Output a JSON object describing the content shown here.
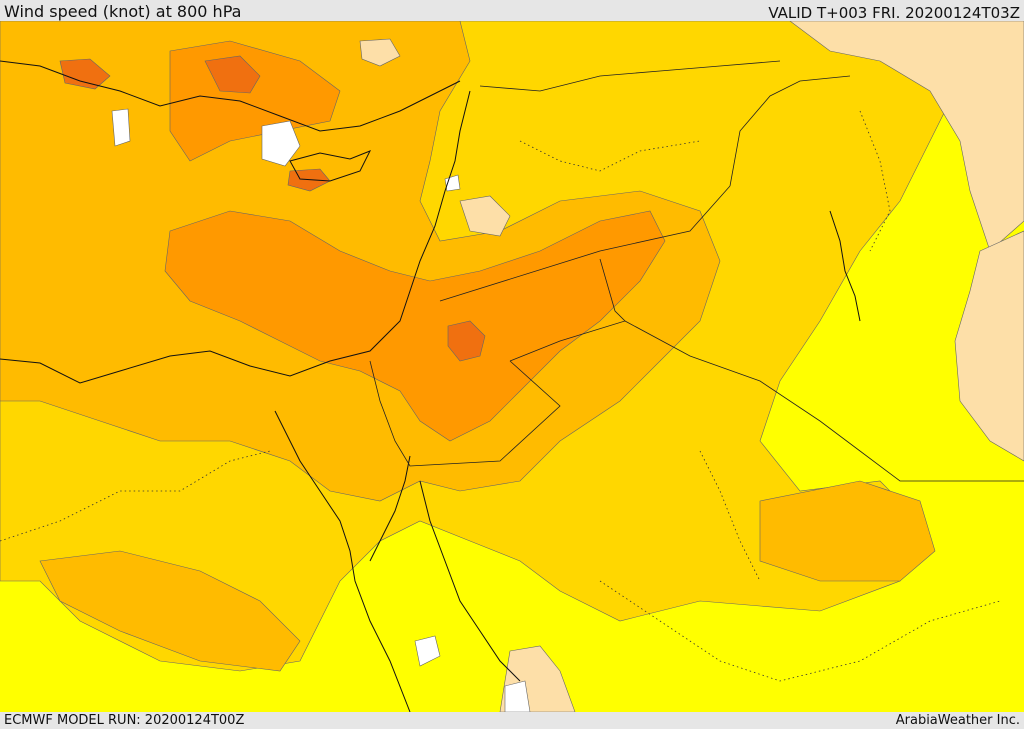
{
  "header": {
    "title": "Wind speed (knot) at 800 hPa",
    "valid": "VALID T+003 FRI. 20200124T03Z"
  },
  "footer": {
    "model_run": "ECMWF MODEL RUN: 20200124T00Z",
    "credit": "ArabiaWeather Inc."
  },
  "colors": {
    "very_low": "#ffffff",
    "low": "#fddfa8",
    "yellow": "#ffff00",
    "yellow_orange": "#ffd700",
    "orange_light": "#ffbb00",
    "orange": "#ff9900",
    "orange_dark": "#f07010",
    "red": "#e04010"
  }
}
